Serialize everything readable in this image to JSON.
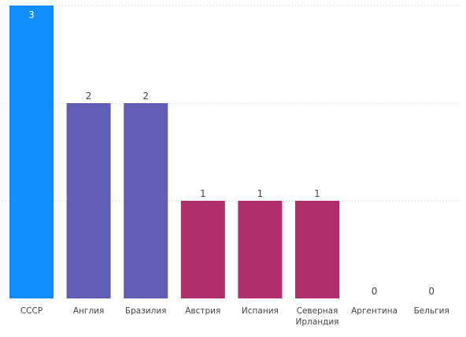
{
  "chart_data": {
    "type": "bar",
    "title": "",
    "xlabel": "",
    "ylabel": "",
    "categories": [
      "СССР",
      "Англия",
      "Бразилия",
      "Австрия",
      "Испания",
      "Северная Ирландия",
      "Аргентина",
      "Бельгия"
    ],
    "category_lines": [
      [
        "СССР"
      ],
      [
        "Англия"
      ],
      [
        "Бразилия"
      ],
      [
        "Австрия"
      ],
      [
        "Испания"
      ],
      [
        "Северная",
        "Ирландия"
      ],
      [
        "Аргентина"
      ],
      [
        "Бельгия"
      ]
    ],
    "values": [
      3,
      2,
      2,
      1,
      1,
      1,
      0,
      0
    ],
    "bar_colors": [
      "#118dff",
      "#615eb5",
      "#615eb5",
      "#b02e6a",
      "#b02e6a",
      "#b02e6a",
      "#b02e6a",
      "#b02e6a"
    ],
    "ylim": [
      0,
      3
    ],
    "grid": true,
    "data_labels": true
  }
}
